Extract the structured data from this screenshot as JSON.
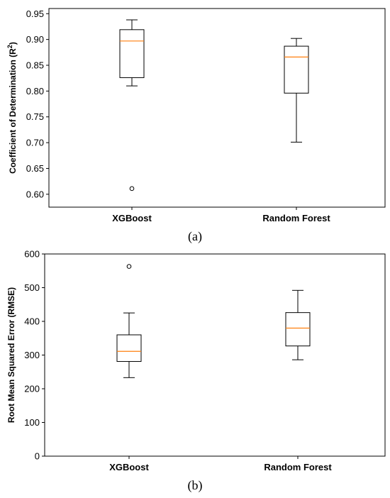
{
  "chart_data": [
    {
      "type": "boxplot",
      "caption": "(a)",
      "ylabel": "Coefficient of Determination (R",
      "ylabel_sup": "2",
      "ylabel_tail": ")",
      "ylim": [
        0.575,
        0.96
      ],
      "yticks": [
        "0.60",
        "0.65",
        "0.70",
        "0.75",
        "0.80",
        "0.85",
        "0.90",
        "0.95"
      ],
      "categories": [
        "XGBoost",
        "Random Forest"
      ],
      "boxes": [
        {
          "name": "XGBoost",
          "whisker_low": 0.81,
          "q1": 0.826,
          "median": 0.897,
          "q3": 0.919,
          "whisker_high": 0.938,
          "outliers": [
            0.611
          ]
        },
        {
          "name": "Random Forest",
          "whisker_low": 0.701,
          "q1": 0.796,
          "median": 0.866,
          "q3": 0.887,
          "whisker_high": 0.902,
          "outliers": []
        }
      ],
      "median_color": "#ff7f0e",
      "box_color": "#000000"
    },
    {
      "type": "boxplot",
      "caption": "(b)",
      "ylabel": "Root Mean Squared Error (RMSE)",
      "ylim": [
        0,
        600
      ],
      "yticks": [
        "0",
        "100",
        "200",
        "300",
        "400",
        "500",
        "600"
      ],
      "categories": [
        "XGBoost",
        "Random Forest"
      ],
      "boxes": [
        {
          "name": "XGBoost",
          "whisker_low": 233,
          "q1": 281,
          "median": 311,
          "q3": 360,
          "whisker_high": 425,
          "outliers": [
            563
          ]
        },
        {
          "name": "Random Forest",
          "whisker_low": 286,
          "q1": 327,
          "median": 380,
          "q3": 426,
          "whisker_high": 492,
          "outliers": []
        }
      ],
      "median_color": "#ff7f0e",
      "box_color": "#000000"
    }
  ]
}
